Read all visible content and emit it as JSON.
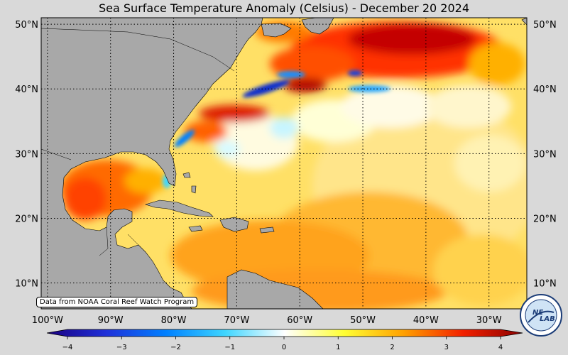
{
  "title": "Sea Surface Temperature Anomaly (Celsius) - December 20 2024",
  "source_note": "Data from NOAA Coral Reef Watch Program",
  "logo_text": "NESDIS LAB",
  "lat_labels": [
    "50°N",
    "40°N",
    "30°N",
    "20°N",
    "10°N"
  ],
  "lat_values": [
    50,
    40,
    30,
    20,
    10
  ],
  "lon_labels": [
    "100°W",
    "90°W",
    "80°W",
    "70°W",
    "60°W",
    "50°W",
    "40°W",
    "30°W"
  ],
  "lon_values": [
    -100,
    -90,
    -80,
    -70,
    -60,
    -50,
    -40,
    -30
  ],
  "map_extent": {
    "lon_min": -101,
    "lon_max": -24,
    "lat_min": 6,
    "lat_max": 51
  },
  "colorbar": {
    "ticks": [
      "−4",
      "−3",
      "−2",
      "−1",
      "0",
      "1",
      "2",
      "3",
      "4"
    ],
    "min": -4,
    "max": 4,
    "colors": [
      "#1a0080",
      "#1f30d9",
      "#0080ff",
      "#3fd6ff",
      "#ffffff",
      "#ffff33",
      "#ffa000",
      "#f22000",
      "#8b0000"
    ]
  },
  "land_color": "#a8a8a8"
}
